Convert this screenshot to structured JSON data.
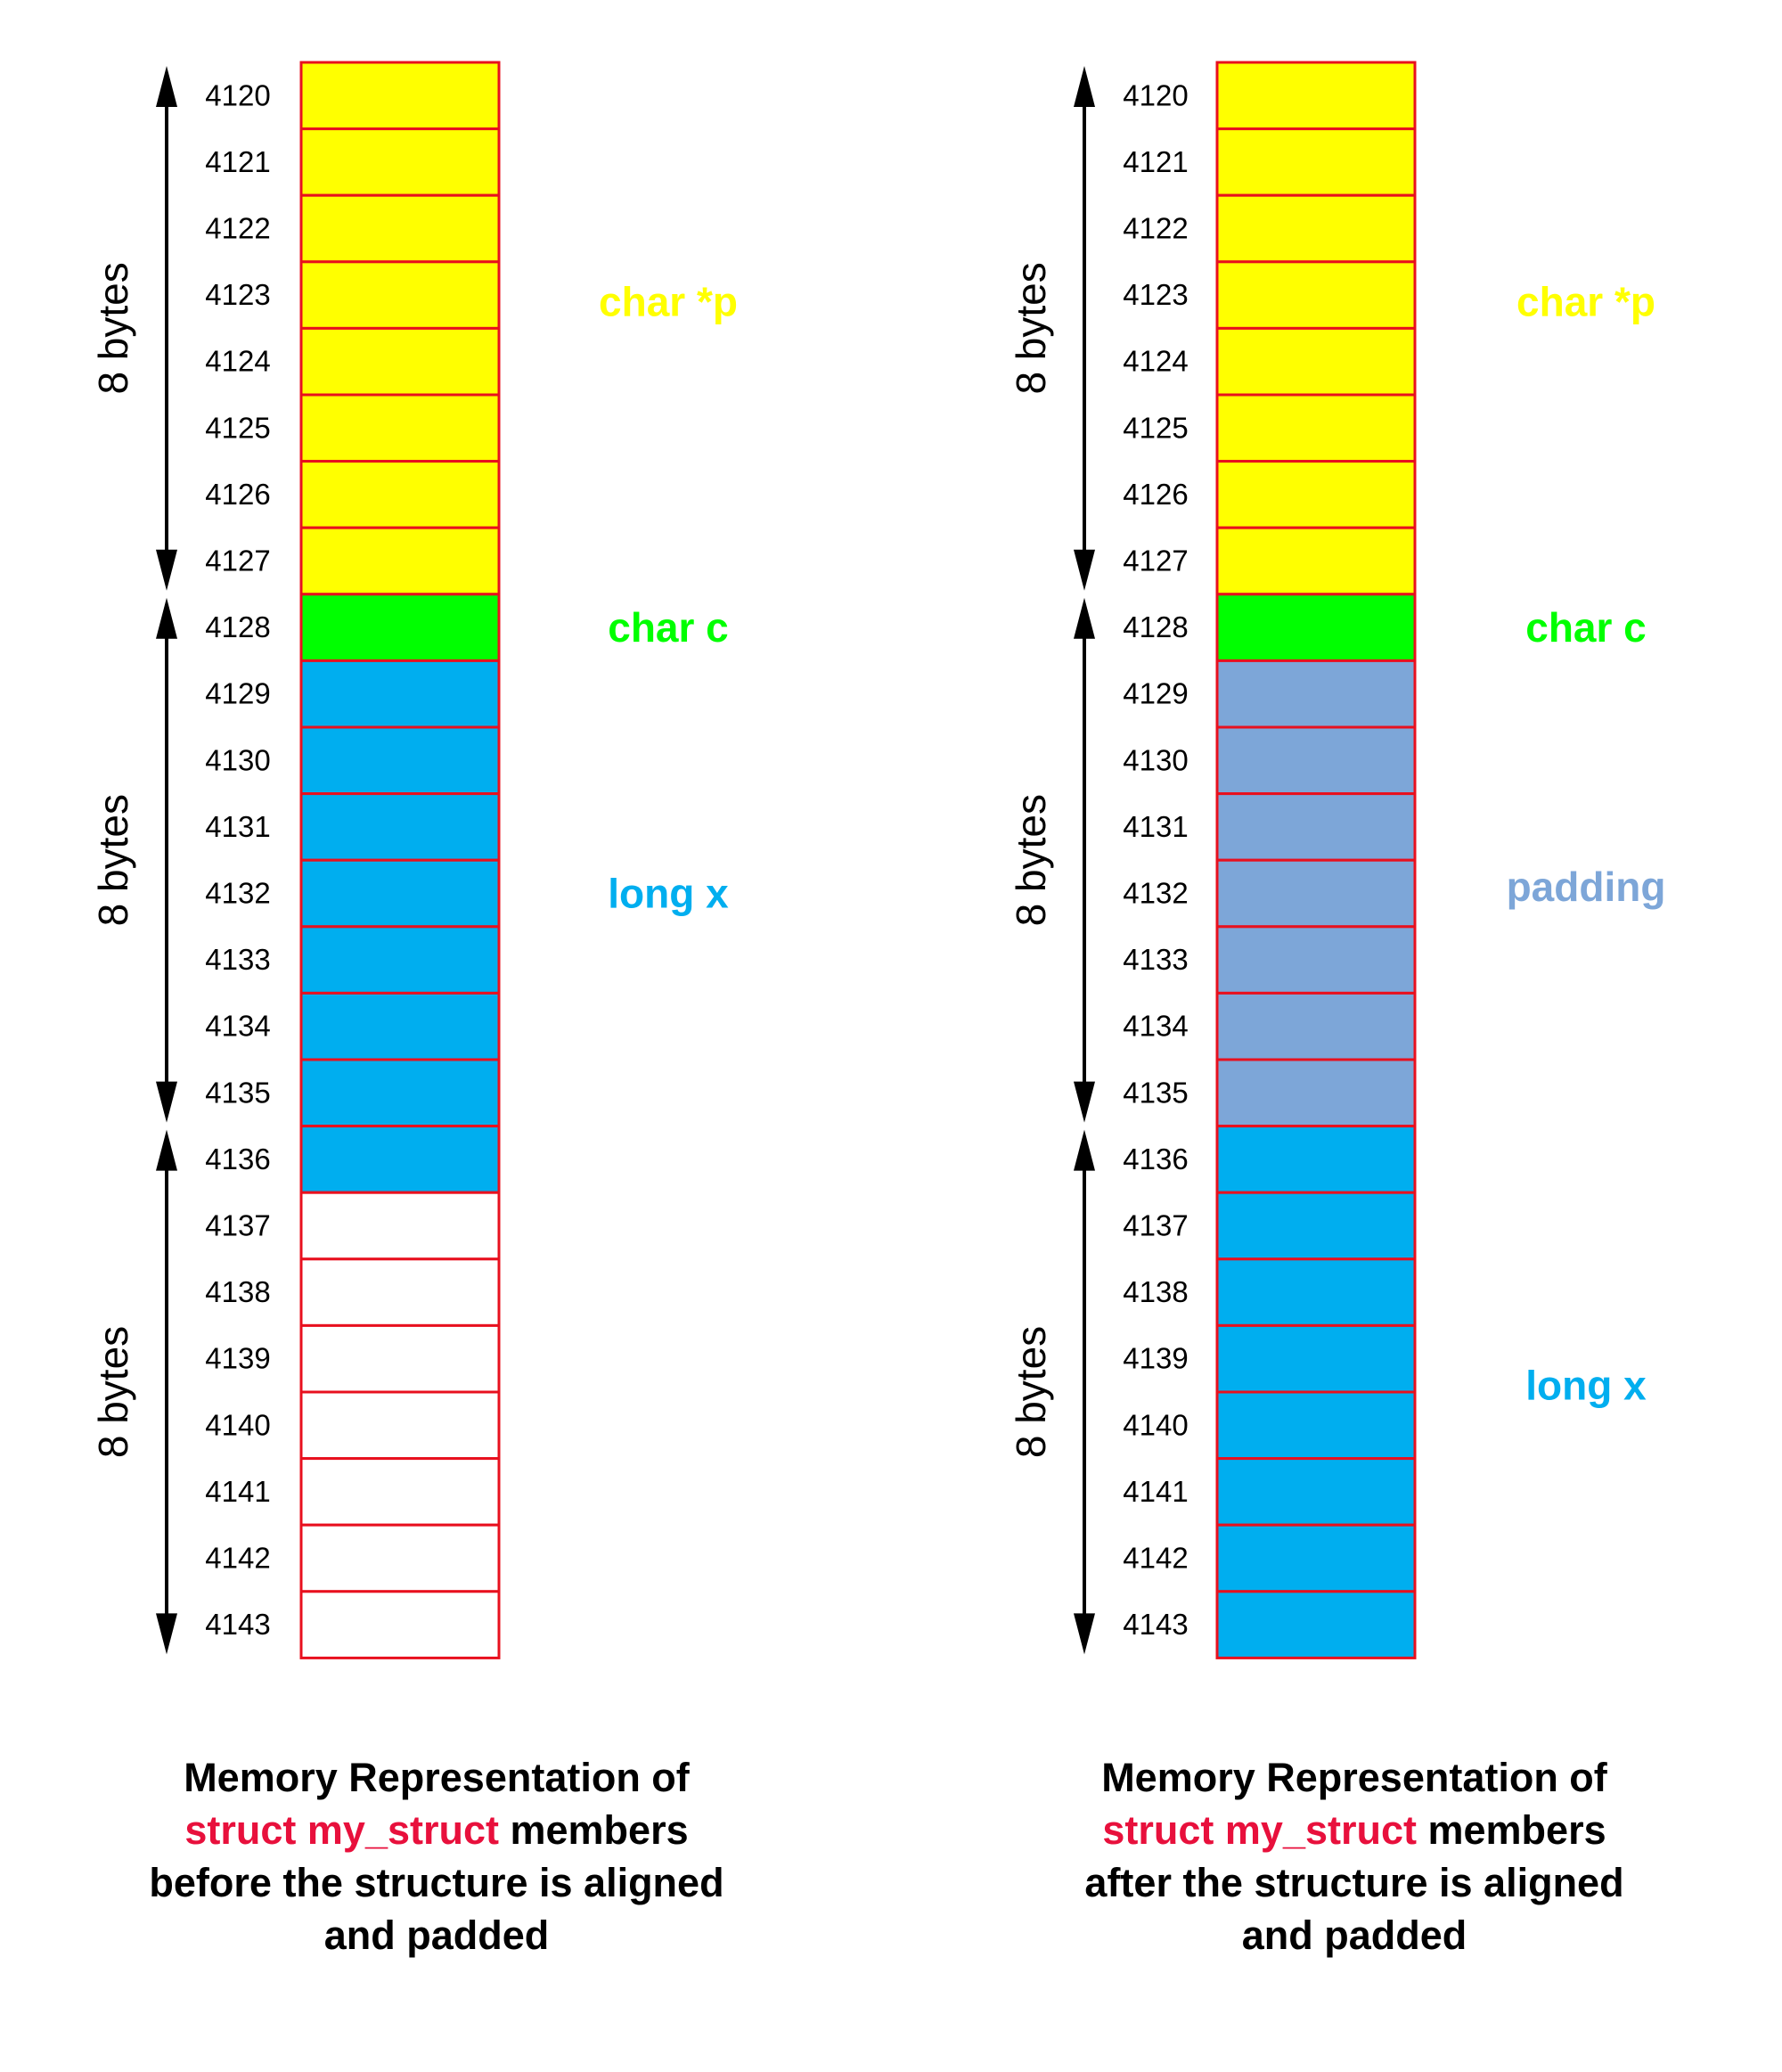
{
  "colors": {
    "pointer": "#FFFF00",
    "char": "#00FF00",
    "long": "#00AEEF",
    "padding": "#7DA6D8",
    "empty": "#FFFFFF",
    "cell_border": "#E8101E",
    "highlight_text": "#E8103C"
  },
  "bytes_label": "8 bytes",
  "panels": [
    {
      "id": "before",
      "addresses": [
        "4120",
        "4121",
        "4122",
        "4123",
        "4124",
        "4125",
        "4126",
        "4127",
        "4128",
        "4129",
        "4130",
        "4131",
        "4132",
        "4133",
        "4134",
        "4135",
        "4136",
        "4137",
        "4138",
        "4139",
        "4140",
        "4141",
        "4142",
        "4143"
      ],
      "cells": [
        "pointer",
        "pointer",
        "pointer",
        "pointer",
        "pointer",
        "pointer",
        "pointer",
        "pointer",
        "char",
        "long",
        "long",
        "long",
        "long",
        "long",
        "long",
        "long",
        "long",
        "empty",
        "empty",
        "empty",
        "empty",
        "empty",
        "empty",
        "empty"
      ],
      "labels": [
        {
          "text": "char *p",
          "kind": "pointer"
        },
        {
          "text": "char c",
          "kind": "char"
        },
        {
          "text": "long x",
          "kind": "long"
        }
      ],
      "caption": {
        "line1": "Memory Representation of",
        "line2_highlight": "struct my_struct",
        "line2_rest": " members",
        "line3": "before the structure is aligned",
        "line4": "and padded"
      }
    },
    {
      "id": "after",
      "addresses": [
        "4120",
        "4121",
        "4122",
        "4123",
        "4124",
        "4125",
        "4126",
        "4127",
        "4128",
        "4129",
        "4130",
        "4131",
        "4132",
        "4133",
        "4134",
        "4135",
        "4136",
        "4137",
        "4138",
        "4139",
        "4140",
        "4141",
        "4142",
        "4143"
      ],
      "cells": [
        "pointer",
        "pointer",
        "pointer",
        "pointer",
        "pointer",
        "pointer",
        "pointer",
        "pointer",
        "char",
        "padding",
        "padding",
        "padding",
        "padding",
        "padding",
        "padding",
        "padding",
        "long",
        "long",
        "long",
        "long",
        "long",
        "long",
        "long",
        "long"
      ],
      "labels": [
        {
          "text": "char *p",
          "kind": "pointer"
        },
        {
          "text": "char c",
          "kind": "char"
        },
        {
          "text": "padding",
          "kind": "padding"
        },
        {
          "text": "long x",
          "kind": "long"
        }
      ],
      "caption": {
        "line1": "Memory Representation of",
        "line2_highlight": "struct my_struct",
        "line2_rest": " members",
        "line3": "after the structure is aligned",
        "line4": "and padded"
      }
    }
  ]
}
